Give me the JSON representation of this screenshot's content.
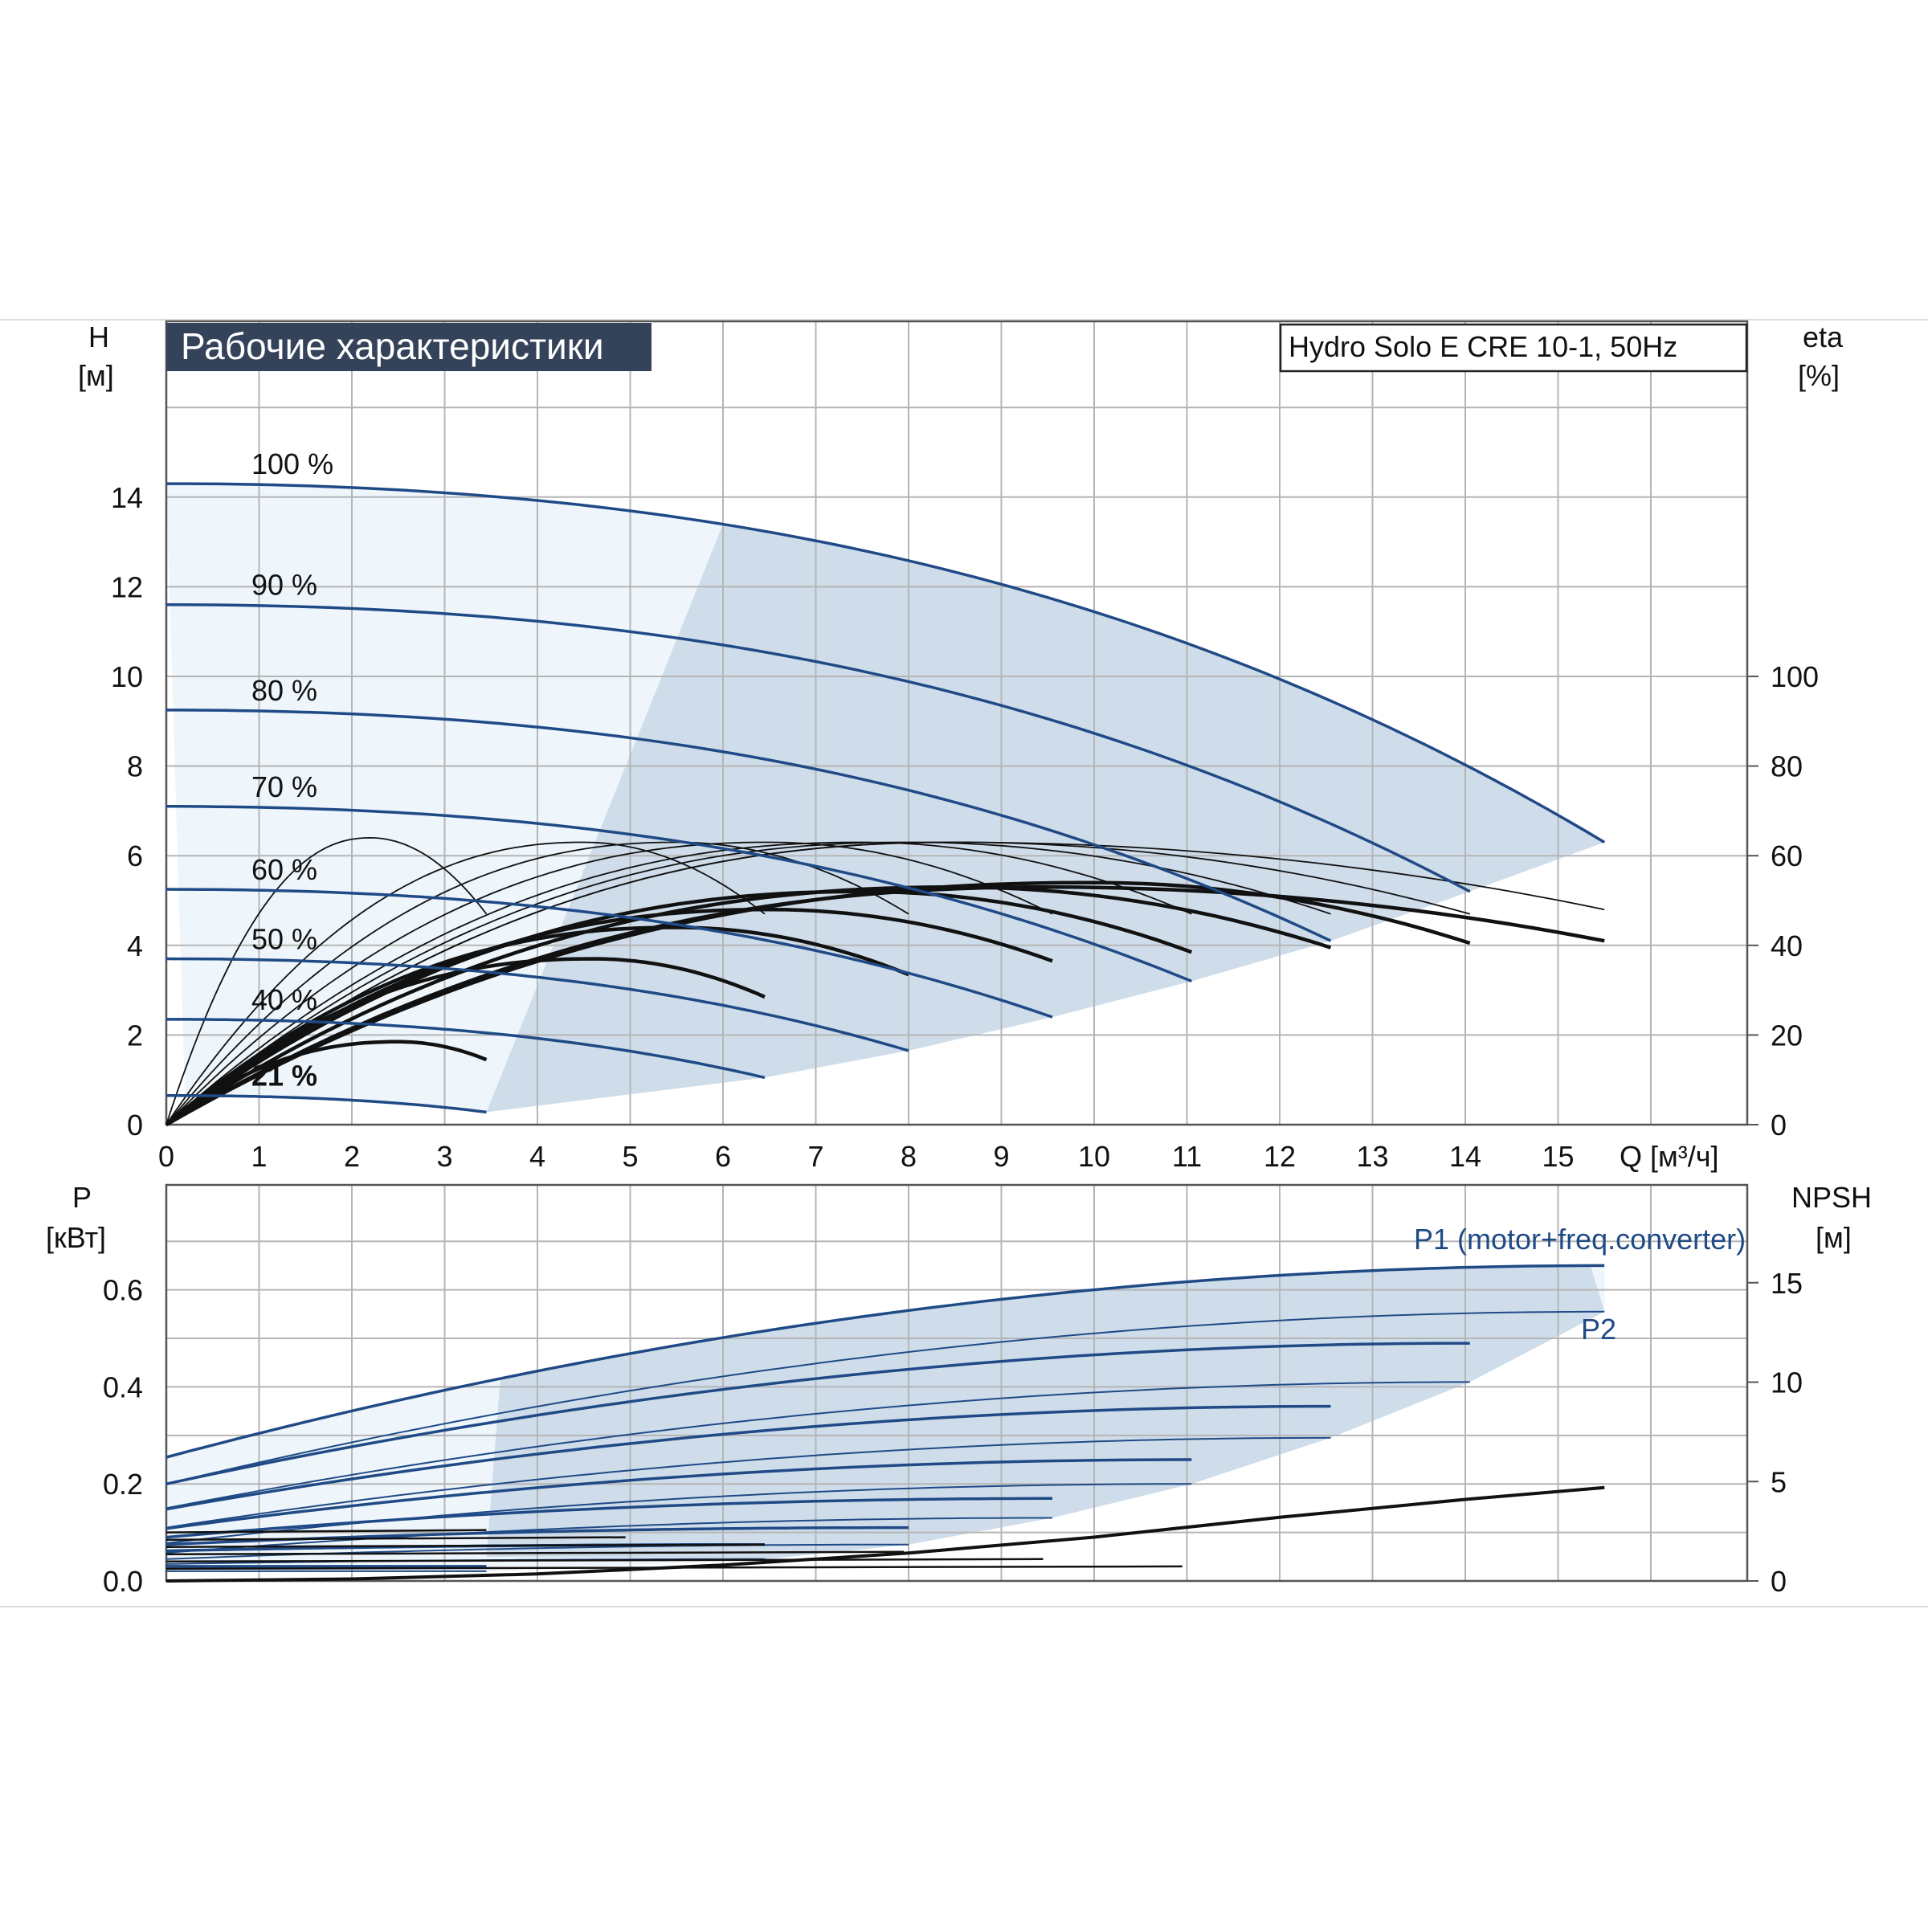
{
  "colors": {
    "curve_blue": "#1f4a86",
    "curve_black": "#111111",
    "fill_dark": "#cfddea",
    "fill_light": "#eef5fb",
    "grid": "#b5b5b5",
    "title_bg": "#34435a",
    "title_fg": "#ffffff"
  },
  "chart_data": [
    {
      "id": "performance",
      "type": "line",
      "title": "Рабочие характеристики",
      "model_label": "Hydro Solo E CRE 10-1, 50Hz",
      "xlabel": "Q [м³/ч]",
      "ylabel_top": "H",
      "ylabel_unit": "[м]",
      "y2label_top": "eta",
      "y2label_unit": "[%]",
      "xlim": [
        0,
        16
      ],
      "ylim": [
        0,
        16
      ],
      "y2lim": [
        0,
        100
      ],
      "x_ticks": [
        "0",
        "1",
        "2",
        "3",
        "4",
        "5",
        "6",
        "7",
        "8",
        "9",
        "10",
        "11",
        "12",
        "13",
        "14",
        "15"
      ],
      "y_ticks": [
        "0",
        "2",
        "4",
        "6",
        "8",
        "10",
        "12",
        "14"
      ],
      "y2_ticks": [
        "0",
        "20",
        "40",
        "60",
        "80",
        "100"
      ],
      "grid": true,
      "head_curves": [
        {
          "name": "100 %",
          "shutoff": 14.3,
          "qmax": 15.5,
          "hend": 6.3
        },
        {
          "name": "90 %",
          "shutoff": 11.6,
          "qmax": 14.05,
          "hend": 5.2
        },
        {
          "name": "80 %",
          "shutoff": 9.25,
          "qmax": 12.55,
          "hend": 4.1
        },
        {
          "name": "70 %",
          "shutoff": 7.1,
          "qmax": 11.05,
          "hend": 3.2
        },
        {
          "name": "60 %",
          "shutoff": 5.25,
          "qmax": 9.55,
          "hend": 2.4
        },
        {
          "name": "50 %",
          "shutoff": 3.7,
          "qmax": 8.0,
          "hend": 1.65
        },
        {
          "name": "40 %",
          "shutoff": 2.35,
          "qmax": 6.45,
          "hend": 1.05
        },
        {
          "name": "21 %",
          "shutoff": 0.65,
          "qmax": 3.45,
          "hend": 0.28
        }
      ],
      "efficiency_curves": [
        {
          "qmax": 15.5,
          "peak": 53,
          "qpeak": 9.5,
          "eend": 41,
          "bold": true
        },
        {
          "qmax": 15.5,
          "peak": 63,
          "qpeak": 8.5,
          "eend": 48,
          "bold": false
        },
        {
          "qmax": 14.05,
          "peak": 54,
          "qpeak": 10.0,
          "eend": 40.5,
          "bold": true
        },
        {
          "qmax": 14.05,
          "peak": 63,
          "qpeak": 8.5,
          "eend": 47,
          "bold": false
        },
        {
          "qmax": 12.55,
          "peak": 53,
          "qpeak": 8.5,
          "eend": 39.5,
          "bold": true
        },
        {
          "qmax": 12.55,
          "peak": 63,
          "qpeak": 8.0,
          "eend": 47,
          "bold": false
        },
        {
          "qmax": 11.05,
          "peak": 52,
          "qpeak": 7.5,
          "eend": 38.5,
          "bold": true
        },
        {
          "qmax": 11.05,
          "peak": 63,
          "qpeak": 7.5,
          "eend": 47,
          "bold": false
        },
        {
          "qmax": 9.55,
          "peak": 48,
          "qpeak": 6.5,
          "eend": 36.5,
          "bold": true
        },
        {
          "qmax": 9.55,
          "peak": 63,
          "qpeak": 6.5,
          "eend": 47,
          "bold": false
        },
        {
          "qmax": 8.0,
          "peak": 44,
          "qpeak": 5.5,
          "eend": 33.5,
          "bold": true
        },
        {
          "qmax": 8.0,
          "peak": 63,
          "qpeak": 5.5,
          "eend": 47,
          "bold": false
        },
        {
          "qmax": 6.45,
          "peak": 37,
          "qpeak": 4.6,
          "eend": 28.5,
          "bold": true
        },
        {
          "qmax": 6.45,
          "peak": 63,
          "qpeak": 4.5,
          "eend": 47,
          "bold": false
        },
        {
          "qmax": 3.45,
          "peak": 18.5,
          "qpeak": 2.5,
          "eend": 14.5,
          "bold": true
        },
        {
          "qmax": 3.45,
          "peak": 64,
          "qpeak": 2.2,
          "eend": 47,
          "bold": false
        }
      ]
    },
    {
      "id": "power",
      "type": "line",
      "xlim": [
        0,
        16
      ],
      "ylim": [
        0,
        0.8
      ],
      "y2lim": [
        0,
        20
      ],
      "ylabel_top": "P",
      "ylabel_unit": "[кВт]",
      "y2label_top": "NPSH",
      "y2label_unit": "[м]",
      "y_ticks": [
        "0.0",
        "0.2",
        "0.4",
        "0.6"
      ],
      "y2_ticks": [
        "0",
        "5",
        "10",
        "15"
      ],
      "grid": true,
      "series_labels": {
        "p1": "P1 (motor+freq.converter)",
        "p2": "P2"
      },
      "power_curves": [
        {
          "qmax": 15.5,
          "p1_start": 0.255,
          "p1_end": 0.65,
          "p2_start": 0.2,
          "p2_end": 0.555
        },
        {
          "qmax": 14.05,
          "p1_start": 0.2,
          "p1_end": 0.49,
          "p2_start": 0.15,
          "p2_end": 0.41
        },
        {
          "qmax": 12.55,
          "p1_start": 0.148,
          "p1_end": 0.36,
          "p2_start": 0.11,
          "p2_end": 0.295
        },
        {
          "qmax": 11.05,
          "p1_start": 0.108,
          "p1_end": 0.25,
          "p2_start": 0.078,
          "p2_end": 0.2
        },
        {
          "qmax": 9.55,
          "p1_start": 0.09,
          "p1_end": 0.17,
          "p2_start": 0.058,
          "p2_end": 0.13
        },
        {
          "qmax": 8.0,
          "p1_start": 0.075,
          "p1_end": 0.11,
          "p2_start": 0.045,
          "p2_end": 0.075
        },
        {
          "qmax": 6.45,
          "p1_start": 0.062,
          "p1_end": 0.075,
          "p2_start": 0.035,
          "p2_end": 0.045
        },
        {
          "qmax": 3.45,
          "p1_start": 0.03,
          "p1_end": 0.03,
          "p2_start": 0.02,
          "p2_end": 0.02
        }
      ],
      "npsh": {
        "x": [
          0,
          2,
          4,
          6,
          8,
          10,
          12,
          14,
          15.5
        ],
        "y": [
          0.0,
          0.1,
          0.35,
          0.8,
          1.4,
          2.2,
          3.2,
          4.1,
          4.7
        ]
      }
    }
  ]
}
